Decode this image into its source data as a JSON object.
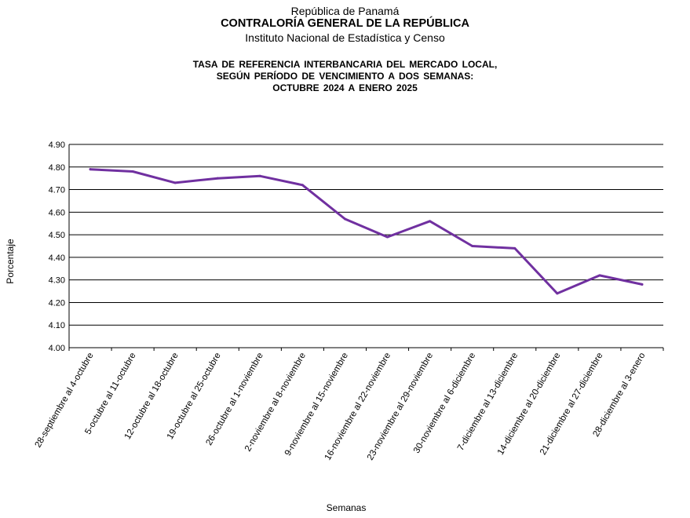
{
  "header": {
    "line1": "República de Panamá",
    "line2": "CONTRALORÍA GENERAL DE LA REPÚBLICA",
    "line3": "Instituto Nacional de Estadística y Censo"
  },
  "title": {
    "line1": "TASA DE REFERENCIA  INTERBANCARIA  DEL  MERCADO LOCAL,",
    "line2": "SEGÚN PERÍODO DE VENCIMIENTO A DOS SEMANAS:",
    "line3": "OCTUBRE  2024 A ENERO  2025"
  },
  "chart_data": {
    "type": "line",
    "xlabel": "Semanas",
    "ylabel": "Porcentaje",
    "ylim": [
      4.0,
      4.9
    ],
    "yticks": [
      "4.00",
      "4.10",
      "4.20",
      "4.30",
      "4.40",
      "4.50",
      "4.60",
      "4.70",
      "4.80",
      "4.90"
    ],
    "grid": true,
    "line_color": "#7030A0",
    "categories": [
      "28-septiembre al 4-octubre",
      "5-octubre al 11-octubre",
      "12-octubre al 18-octubre",
      "19-octubre al 25-octubre",
      "26-octubre al 1-noviembre",
      "2-noviembre al 8-noviembre",
      "9-noviembre al 15-noviembre",
      "16-noviembre al 22-noviembre",
      "23-noviembre al 29-noviembre",
      "30-noviembre al 6-diciembre",
      "7-diciembre al 13-diciembre",
      "14-diciembre al 20-diciembre",
      "21-diciembre al 27-diciembre",
      "28-diciembre al 3-enero"
    ],
    "values": [
      4.79,
      4.78,
      4.73,
      4.75,
      4.76,
      4.72,
      4.57,
      4.49,
      4.56,
      4.45,
      4.44,
      4.24,
      4.32,
      4.28
    ]
  }
}
